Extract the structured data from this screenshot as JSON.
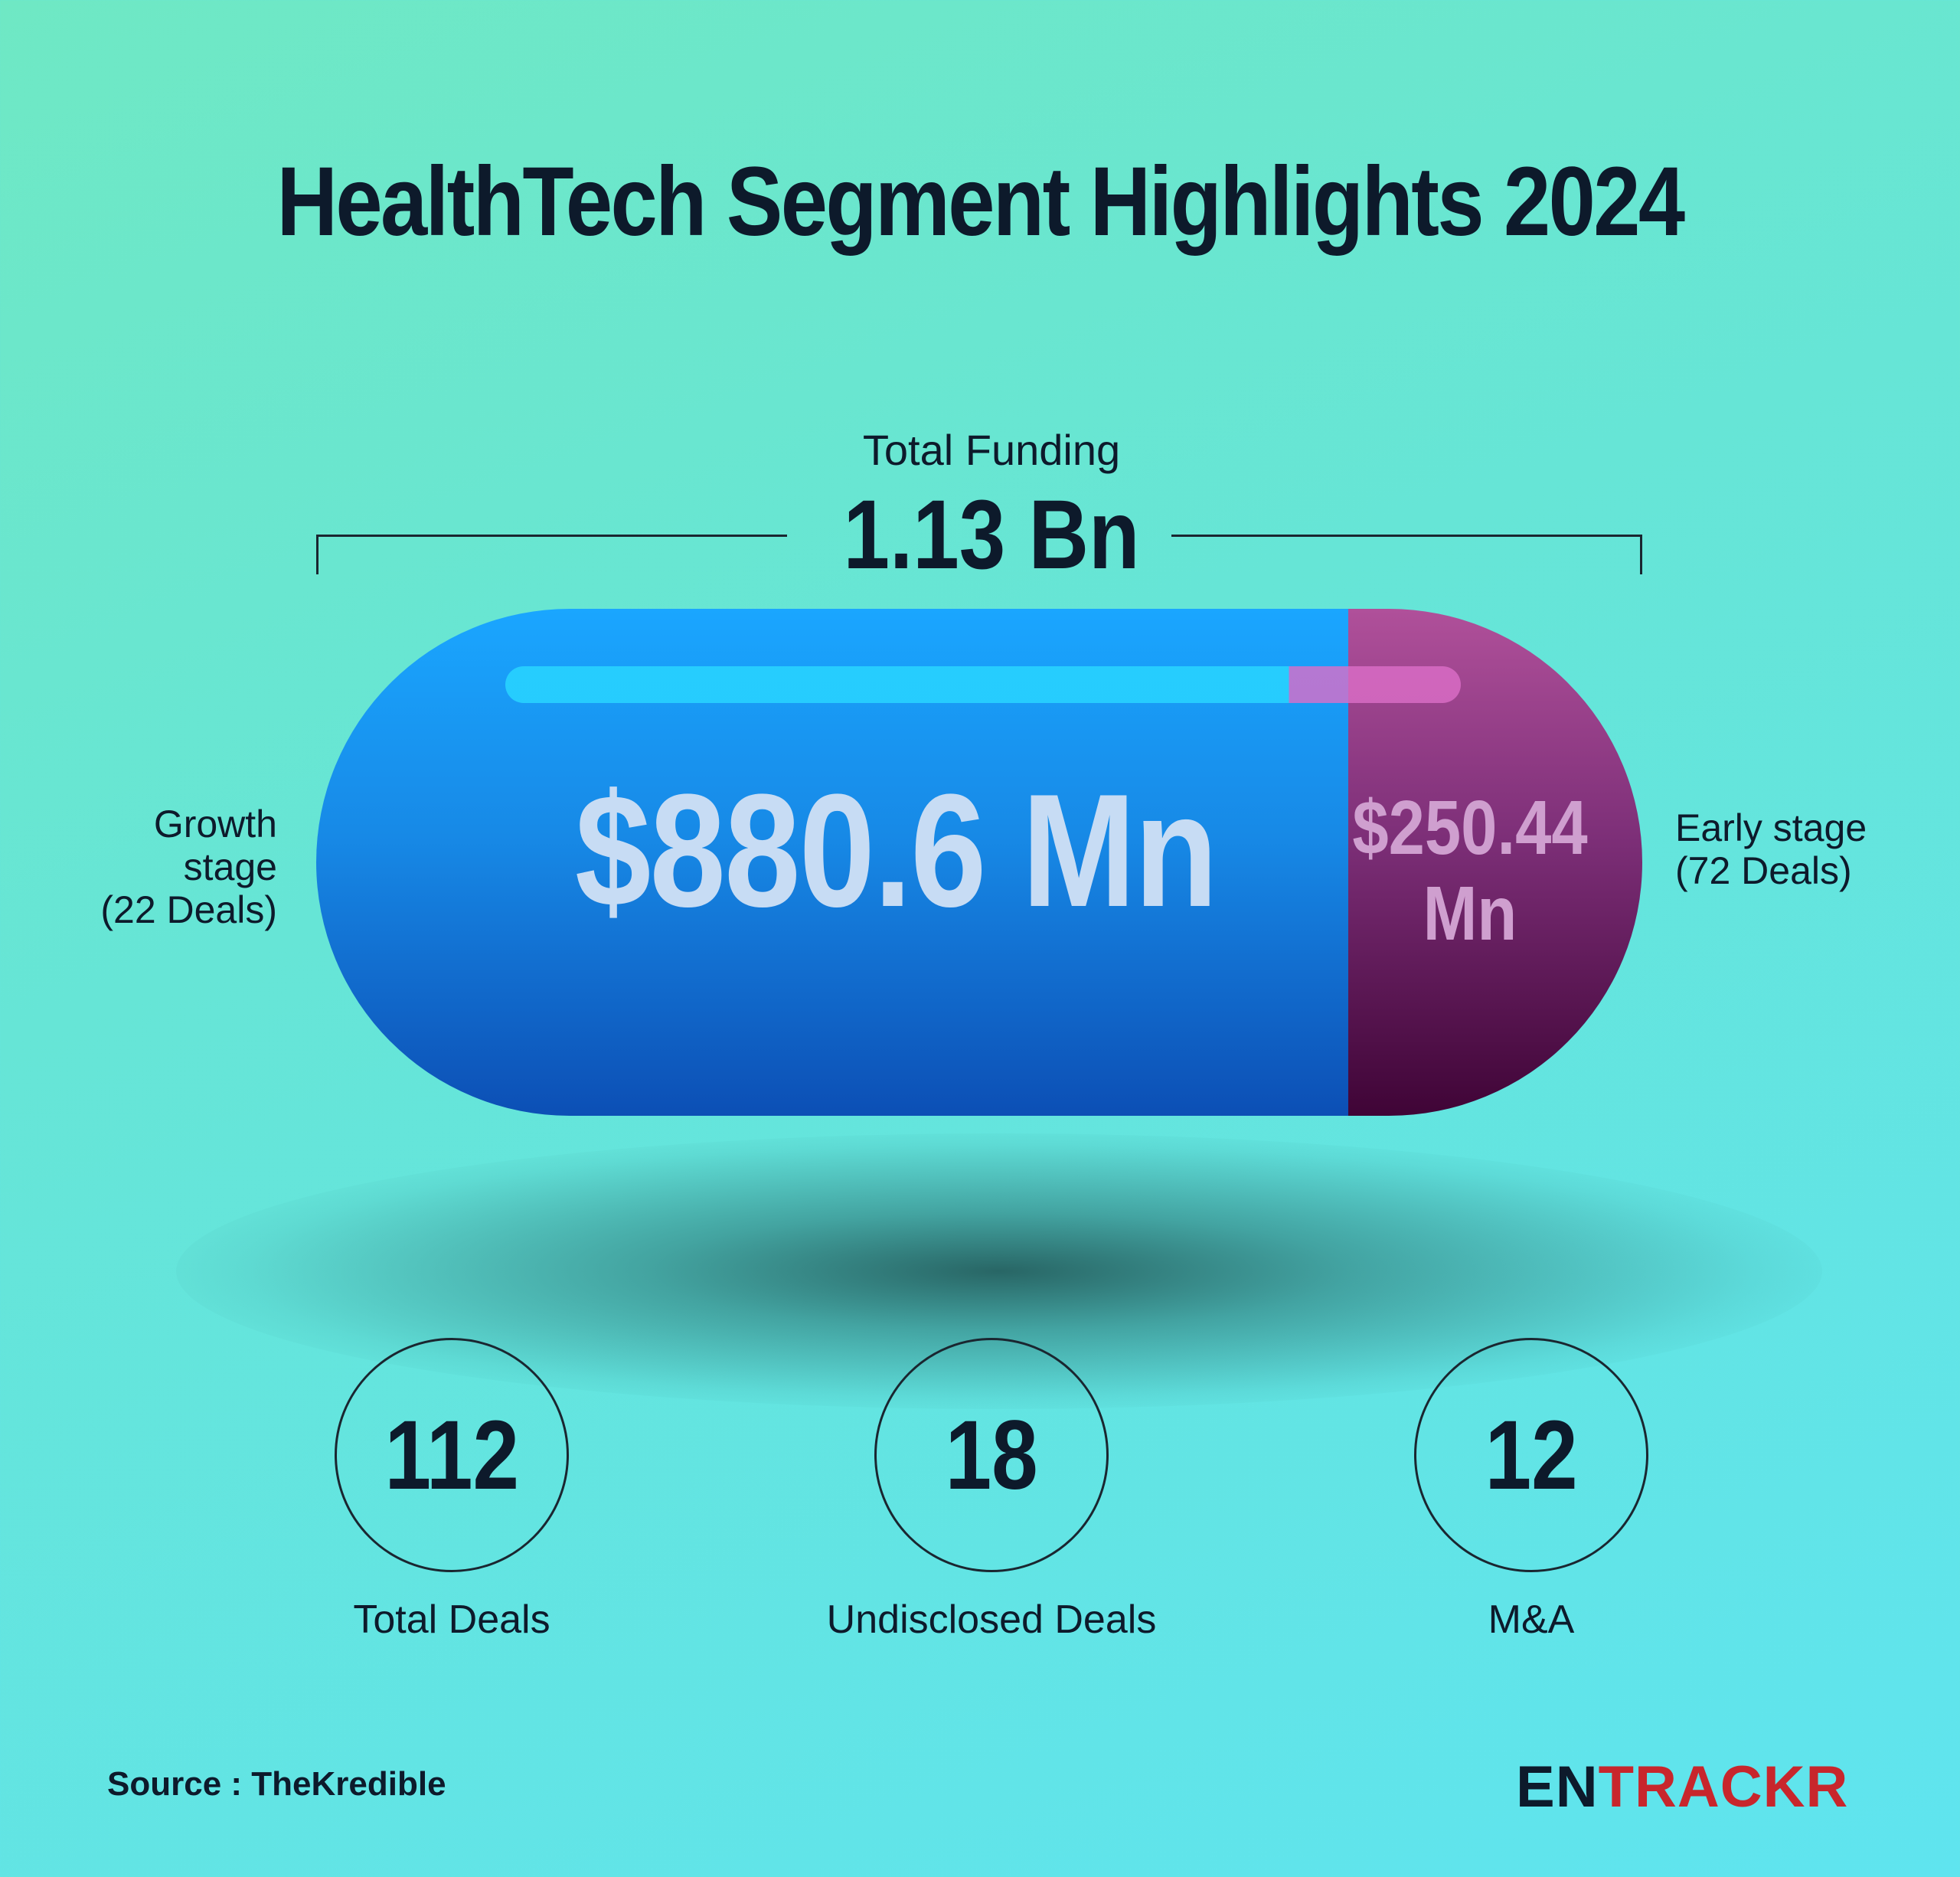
{
  "title": "HealthTech Segment Highlights 2024",
  "chart_data": {
    "type": "bar",
    "title": "HealthTech Segment Highlights 2024",
    "total_label": "Total Funding",
    "total_value_text": "1.13 Bn",
    "segments": [
      {
        "name": "Growth stage",
        "deals_text": "(22 Deals)",
        "value": 880.6,
        "value_text": "$880.6 Mn",
        "color": "#1789e6"
      },
      {
        "name": "Early stage",
        "deals_text": "(72 Deals)",
        "value": 250.44,
        "value_text_line1": "$250.44",
        "value_text_line2": "Mn",
        "color": "#7d2f78"
      }
    ],
    "unit": "Mn"
  },
  "growth_label_line1": "Growth",
  "growth_label_line2": "stage",
  "early_label_line1": "Early stage",
  "stats": [
    {
      "value": "112",
      "label": "Total Deals"
    },
    {
      "value": "18",
      "label": "Undisclosed Deals"
    },
    {
      "value": "12",
      "label": "M&A"
    }
  ],
  "source": "Source : TheKredible",
  "logo": {
    "part1": "EN",
    "part2": "TRACKR"
  }
}
